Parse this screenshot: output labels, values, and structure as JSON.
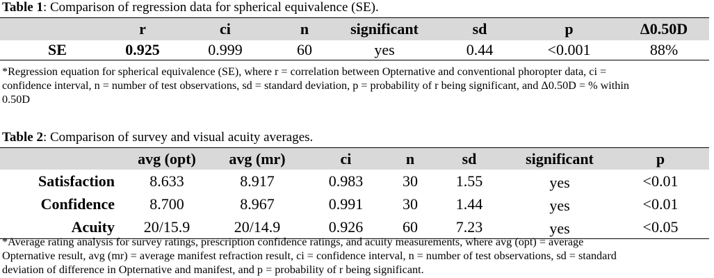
{
  "table1": {
    "caption_label": "Table 1",
    "caption_text": ": Comparison of regression data for spherical equivalence (SE).",
    "headers": [
      "",
      "r",
      "ci",
      "n",
      "significant",
      "sd",
      "p",
      "Δ0.50D"
    ],
    "row": [
      "SE",
      "0.925",
      "0.999",
      "60",
      "yes",
      "0.44",
      "<0.001",
      "88%"
    ],
    "note_lines": [
      "*Regression equation for spherical equivalence (SE), where r = correlation between Opternative and conventional phoropter data, ci =",
      "confidence interval, n = number of test observations, sd = standard deviation, p = probability of r being significant, and Δ0.50D = % within",
      "0.50D"
    ]
  },
  "table2": {
    "caption_label": "Table 2",
    "caption_text": ": Comparison of survey and visual acuity averages.",
    "headers": [
      "",
      "avg (opt)",
      "avg (mr)",
      "ci",
      "n",
      "sd",
      "significant",
      "p"
    ],
    "rows": [
      [
        "Satisfaction",
        "8.633",
        "8.917",
        "0.983",
        "30",
        "1.55",
        "yes",
        "<0.01"
      ],
      [
        "Confidence",
        "8.700",
        "8.967",
        "0.991",
        "30",
        "1.44",
        "yes",
        "<0.01"
      ],
      [
        "Acuity",
        "20/15.9",
        "20/14.9",
        "0.926",
        "60",
        "7.23",
        "yes",
        "<0.05"
      ]
    ],
    "note_lines": [
      "*Average rating analysis for survey ratings, prescription confidence ratings, and acuity measurements, where avg (opt) = average",
      "Opternative result, avg (mr) = average manifest refraction result, ci = confidence interval, n = number of test observations, sd = standard",
      "deviation of difference in Opternative and manifest, and p = probability of r being significant."
    ]
  }
}
